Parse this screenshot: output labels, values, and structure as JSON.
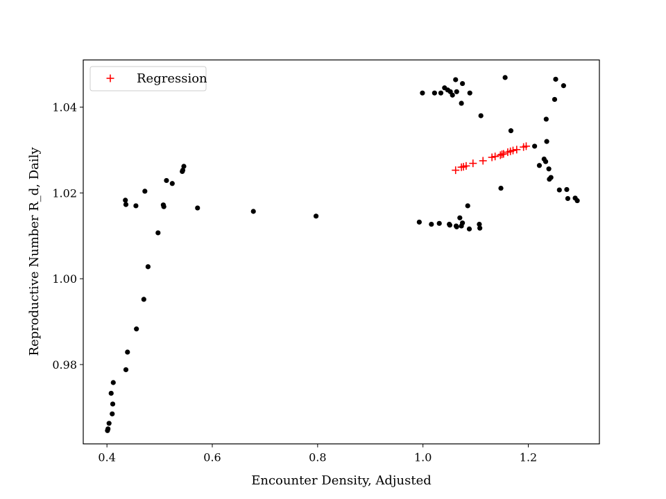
{
  "chart_data": {
    "type": "scatter",
    "title": "",
    "xlabel": "Encounter Density, Adjusted",
    "ylabel": "Reproductive Number R_d, Daily",
    "xlim": [
      0.355,
      1.335
    ],
    "ylim": [
      0.9615,
      1.051
    ],
    "xticks": [
      0.4,
      0.6,
      0.8,
      1.0,
      1.2
    ],
    "xtick_labels": [
      "0.4",
      "0.6",
      "0.8",
      "1.0",
      "1.2"
    ],
    "yticks": [
      0.98,
      1.0,
      1.02,
      1.04
    ],
    "ytick_labels": [
      "0.98",
      "1.00",
      "1.02",
      "1.04"
    ],
    "grid": false,
    "legend": {
      "placement": "top-left",
      "entries": [
        "Regression"
      ]
    },
    "colors": {
      "observed": "#000000",
      "regression": "#ff0000"
    },
    "series": [
      {
        "marker": "dot",
        "points": [
          [
            0.401,
            0.9646
          ],
          [
            0.402,
            0.965
          ],
          [
            0.404,
            0.9663
          ],
          [
            0.408,
            0.9733
          ],
          [
            0.411,
            0.9708
          ],
          [
            0.41,
            0.9685
          ],
          [
            0.412,
            0.9758
          ],
          [
            0.436,
            0.9788
          ],
          [
            0.439,
            0.9829
          ],
          [
            0.456,
            0.9883
          ],
          [
            0.47,
            0.9952
          ],
          [
            0.478,
            1.0028
          ],
          [
            0.497,
            1.0107
          ],
          [
            0.435,
            1.0183
          ],
          [
            0.436,
            1.0173
          ],
          [
            0.455,
            1.017
          ],
          [
            0.472,
            1.0204
          ],
          [
            0.507,
            1.0172
          ],
          [
            0.508,
            1.0168
          ],
          [
            0.513,
            1.0229
          ],
          [
            0.524,
            1.0222
          ],
          [
            0.543,
            1.025
          ],
          [
            0.544,
            1.0253
          ],
          [
            0.546,
            1.0262
          ],
          [
            0.572,
            1.0165
          ],
          [
            0.678,
            1.0157
          ],
          [
            0.797,
            1.0146
          ],
          [
            0.993,
            1.0132
          ],
          [
            1.016,
            1.0127
          ],
          [
            1.031,
            1.0129
          ],
          [
            1.05,
            1.0127
          ],
          [
            1.051,
            1.0125
          ],
          [
            1.063,
            1.0123
          ],
          [
            1.064,
            1.0121
          ],
          [
            1.07,
            1.0142
          ],
          [
            1.073,
            1.0123
          ],
          [
            1.075,
            1.013
          ],
          [
            1.085,
            1.017
          ],
          [
            1.088,
            1.0116
          ],
          [
            1.107,
            1.0127
          ],
          [
            1.108,
            1.0118
          ],
          [
            0.999,
            1.0433
          ],
          [
            1.022,
            1.0433
          ],
          [
            1.034,
            1.0433
          ],
          [
            1.041,
            1.0445
          ],
          [
            1.047,
            1.044
          ],
          [
            1.052,
            1.0436
          ],
          [
            1.056,
            1.0428
          ],
          [
            1.062,
            1.0464
          ],
          [
            1.064,
            1.0436
          ],
          [
            1.073,
            1.0409
          ],
          [
            1.075,
            1.0455
          ],
          [
            1.089,
            1.0433
          ],
          [
            1.11,
            1.038
          ],
          [
            1.148,
            1.0211
          ],
          [
            1.156,
            1.0469
          ],
          [
            1.167,
            1.0345
          ],
          [
            1.212,
            1.0309
          ],
          [
            1.221,
            1.0264
          ],
          [
            1.23,
            1.0279
          ],
          [
            1.233,
            1.0273
          ],
          [
            1.234,
            1.0372
          ],
          [
            1.235,
            1.032
          ],
          [
            1.239,
            1.0256
          ],
          [
            1.24,
            1.0232
          ],
          [
            1.243,
            1.0236
          ],
          [
            1.25,
            1.0418
          ],
          [
            1.252,
            1.0465
          ],
          [
            1.259,
            1.0207
          ],
          [
            1.267,
            1.045
          ],
          [
            1.273,
            1.0208
          ],
          [
            1.275,
            1.0187
          ],
          [
            1.289,
            1.0188
          ],
          [
            1.293,
            1.0182
          ]
        ]
      },
      {
        "name": "Regression",
        "marker": "plus",
        "points": [
          [
            1.062,
            1.0253
          ],
          [
            1.073,
            1.026
          ],
          [
            1.077,
            1.0261
          ],
          [
            1.082,
            1.0263
          ],
          [
            1.095,
            1.0269
          ],
          [
            1.114,
            1.0275
          ],
          [
            1.131,
            1.0283
          ],
          [
            1.137,
            1.0285
          ],
          [
            1.147,
            1.0288
          ],
          [
            1.15,
            1.029
          ],
          [
            1.153,
            1.0291
          ],
          [
            1.161,
            1.0295
          ],
          [
            1.166,
            1.0297
          ],
          [
            1.171,
            1.0299
          ],
          [
            1.178,
            1.0301
          ],
          [
            1.191,
            1.0307
          ],
          [
            1.196,
            1.0309
          ]
        ]
      }
    ]
  }
}
